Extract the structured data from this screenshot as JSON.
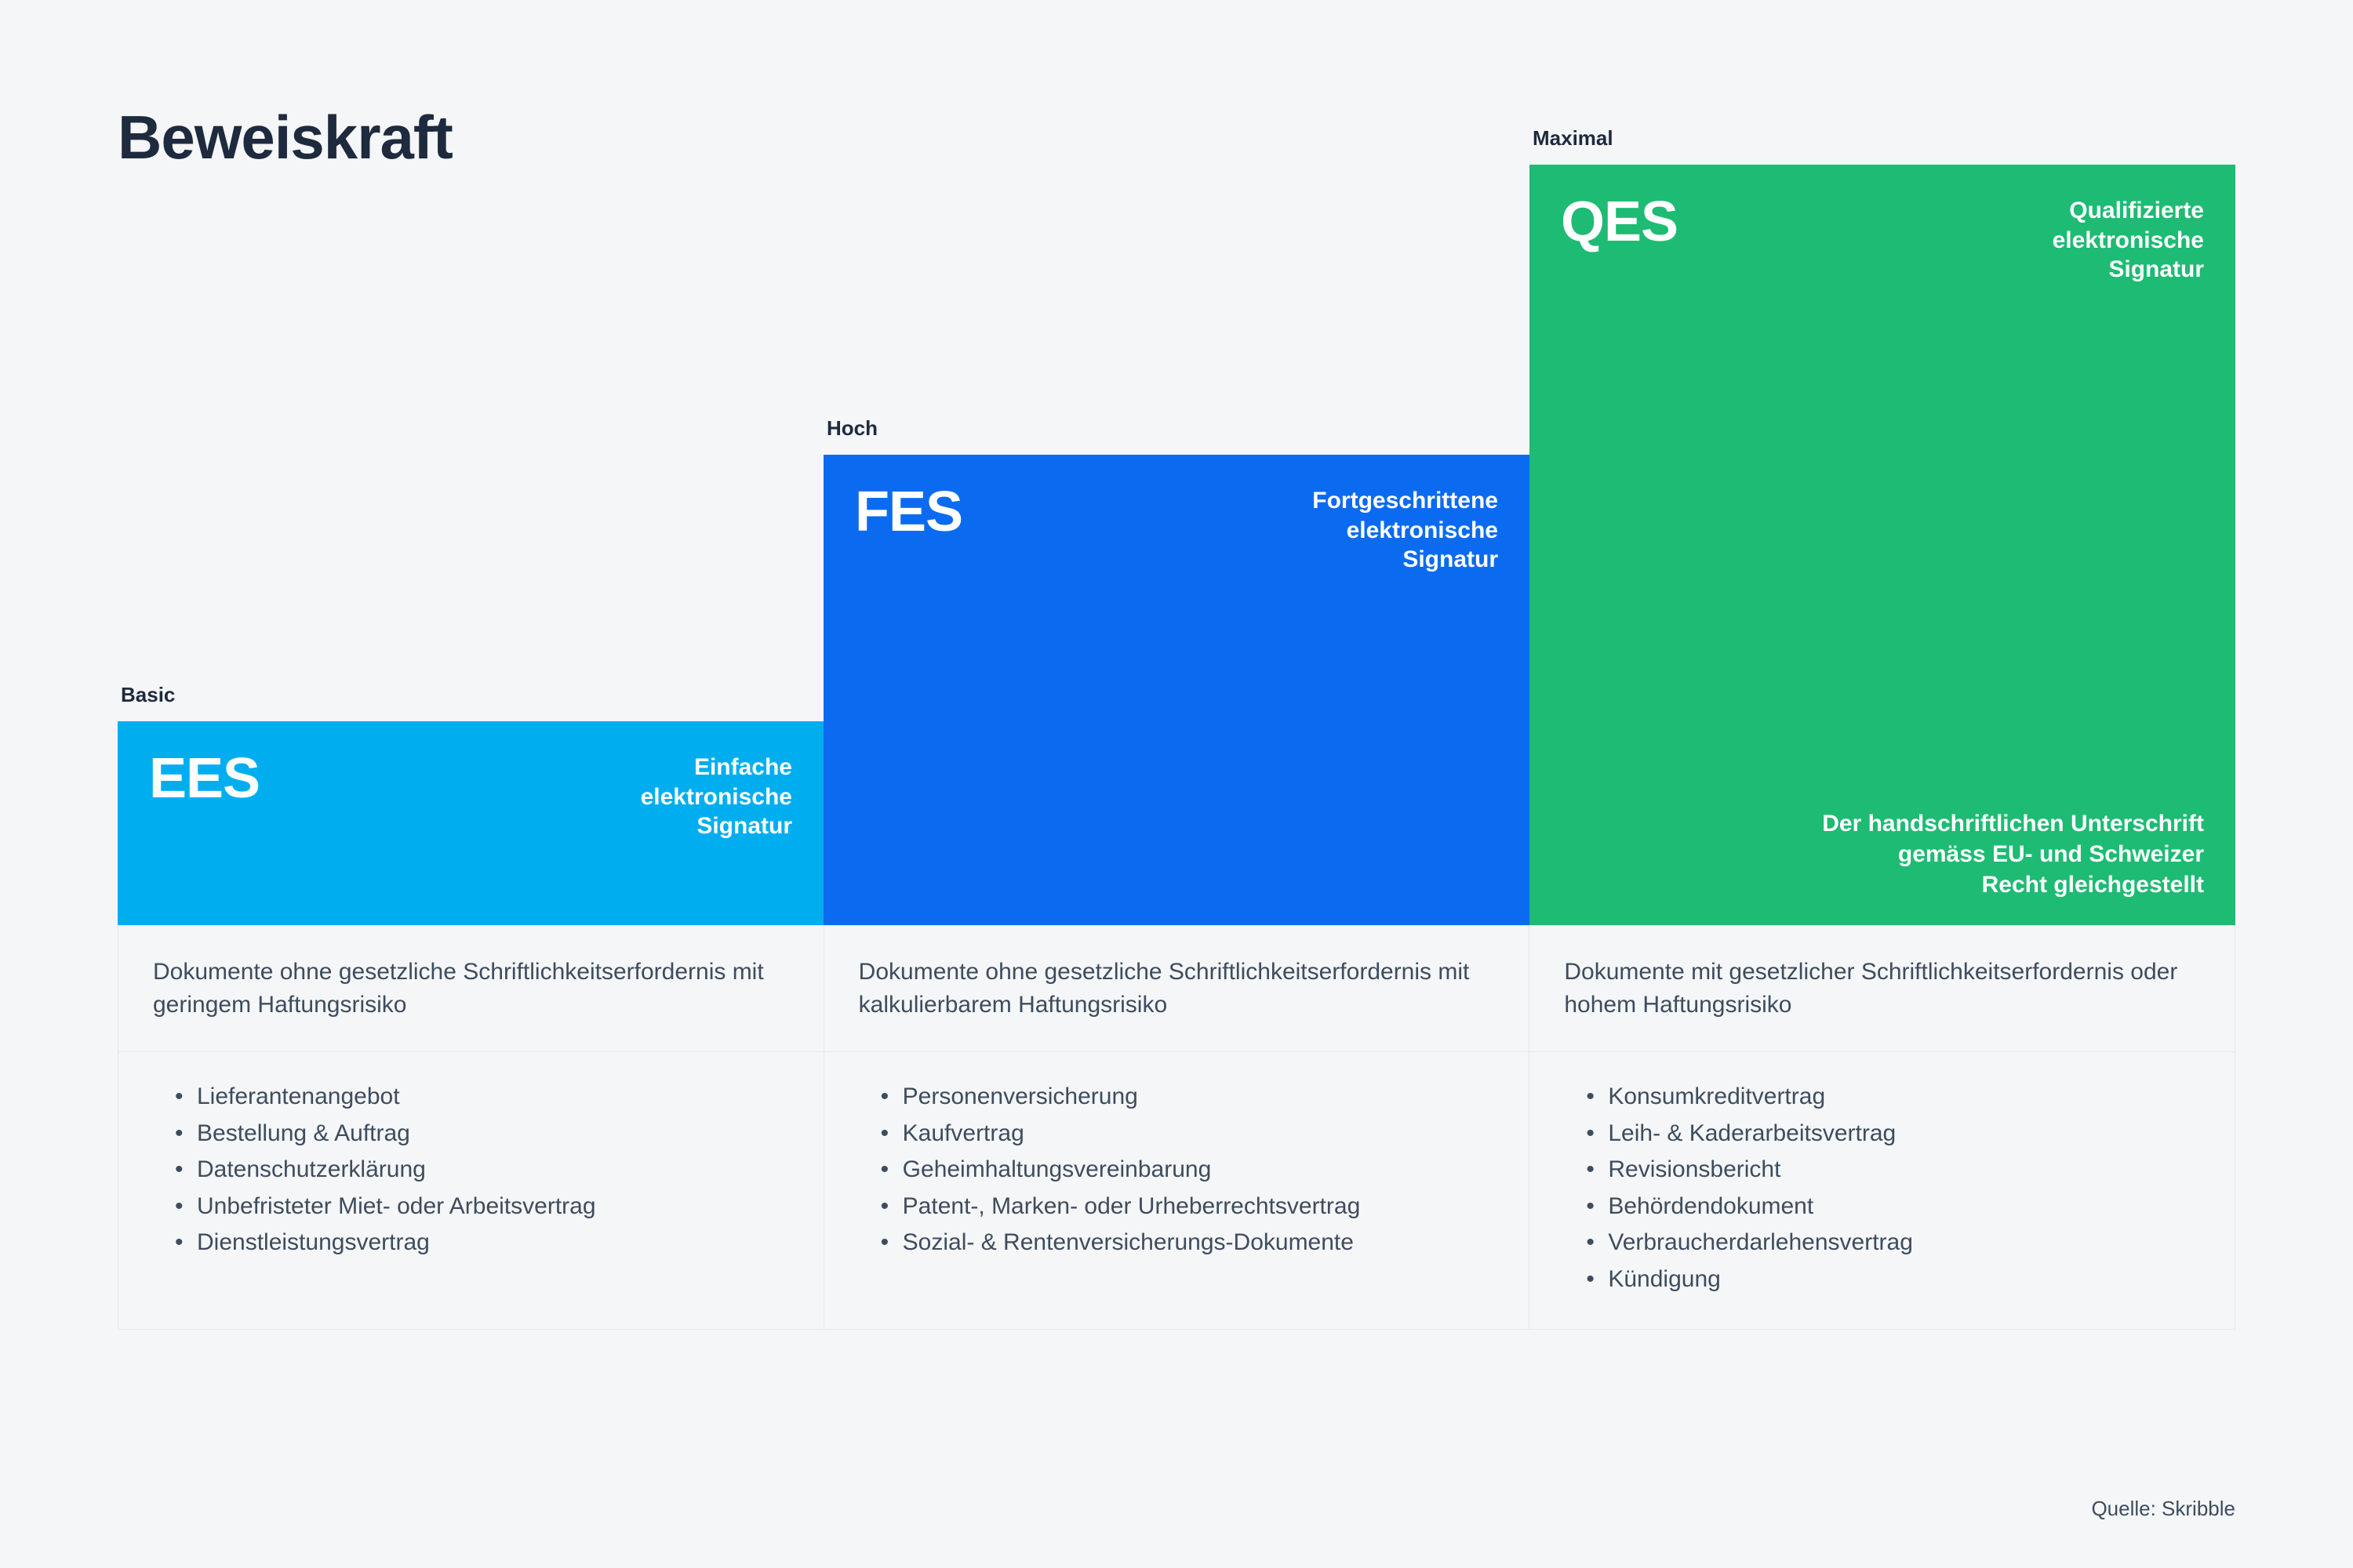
{
  "title": "Beweiskraft",
  "background_color": "#f5f6f7",
  "text_color": "#1e2a3e",
  "body_text_color": "#3e4c5e",
  "border_color": "#e5e7ea",
  "source": "Quelle: Skribble",
  "columns": [
    {
      "level_label": "Basic",
      "abbrev": "EES",
      "full_name": "Einfache\nelektronische\nSignatur",
      "block_color": "#00aef0",
      "block_height": 260,
      "bottom_note": "",
      "description": "Dokumente ohne gesetzliche Schriftlichkeitserfordernis mit geringem Haftungsrisiko",
      "examples": [
        "Lieferantenangebot",
        "Bestellung & Auftrag",
        "Datenschutzerklärung",
        "Unbefristeter Miet- oder Arbeitsvertrag",
        "Dienstleistungsvertrag"
      ]
    },
    {
      "level_label": "Hoch",
      "abbrev": "FES",
      "full_name": "Fortgeschrittene\nelektronische\nSignatur",
      "block_color": "#0b6bf0",
      "block_height": 600,
      "bottom_note": "",
      "description": "Dokumente ohne gesetzliche Schriftlichkeitserfordernis mit kalkulierbarem Haftungsrisiko",
      "examples": [
        "Personenversicherung",
        "Kaufvertrag",
        "Geheimhaltungsvereinbarung",
        "Patent-, Marken- oder Urheberrechtsvertrag",
        "Sozial- & Rentenversicherungs-Dokumente"
      ]
    },
    {
      "level_label": "Maximal",
      "abbrev": "QES",
      "full_name": "Qualifizierte\nelektronische\nSignatur",
      "block_color": "#1dbb73",
      "block_height": 970,
      "bottom_note": "Der handschriftlichen Unterschrift\ngemäss EU- und Schweizer\nRecht gleichgestellt",
      "description": "Dokumente mit gesetzlicher Schriftlichkeitserfordernis oder hohem Haftungsrisiko",
      "examples": [
        "Konsumkreditvertrag",
        "Leih- & Kaderarbeitsvertrag",
        "Revisionsbericht",
        "Behördendokument",
        "Verbraucherdarlehensvertrag",
        "Kündigung"
      ]
    }
  ]
}
